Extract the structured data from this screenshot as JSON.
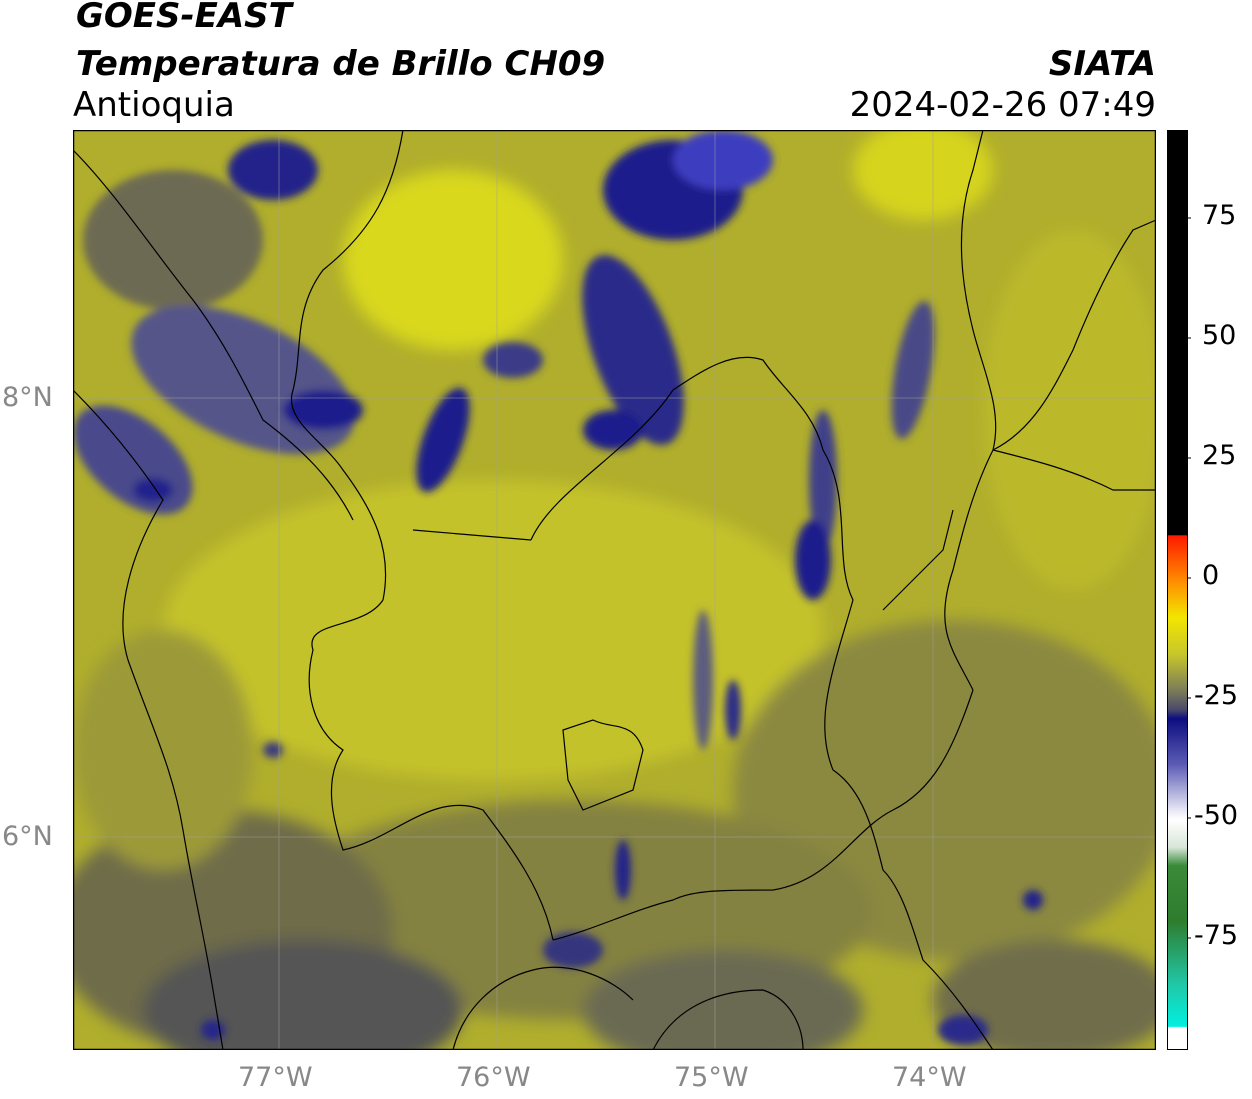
{
  "header": {
    "title_line1": "GOES-EAST",
    "title_line2": "Temperatura de Brillo CH09",
    "subtitle": "Antioquia",
    "agency": "SIATA",
    "datetime": "2024-02-26 07:49"
  },
  "axes": {
    "lon_labels": [
      "77°W",
      "76°W",
      "75°W",
      "74°W"
    ],
    "lat_labels": [
      "8°N",
      "6°N"
    ]
  },
  "colorbar": {
    "tick_labels": [
      "75",
      "50",
      "25",
      "0",
      "-25",
      "-50",
      "-75"
    ],
    "colors": {
      "black": "#000000",
      "red": "#ff1a00",
      "orange": "#ff9900",
      "yellow": "#f2f200",
      "olive": "#b4b428",
      "gray": "#555555",
      "navy": "#0d0d80",
      "white": "#ffffff",
      "green": "#3a8a3a",
      "cyan": "#00e6d2"
    }
  },
  "map": {
    "colors": {
      "bright_yellow": "#e6e61a",
      "olive_yellow": "#b9b82a",
      "olive": "#9e9c34",
      "dark_olive": "#7d7b45",
      "gray": "#5d5d5d",
      "deep_blue": "#1a1a8c"
    }
  }
}
